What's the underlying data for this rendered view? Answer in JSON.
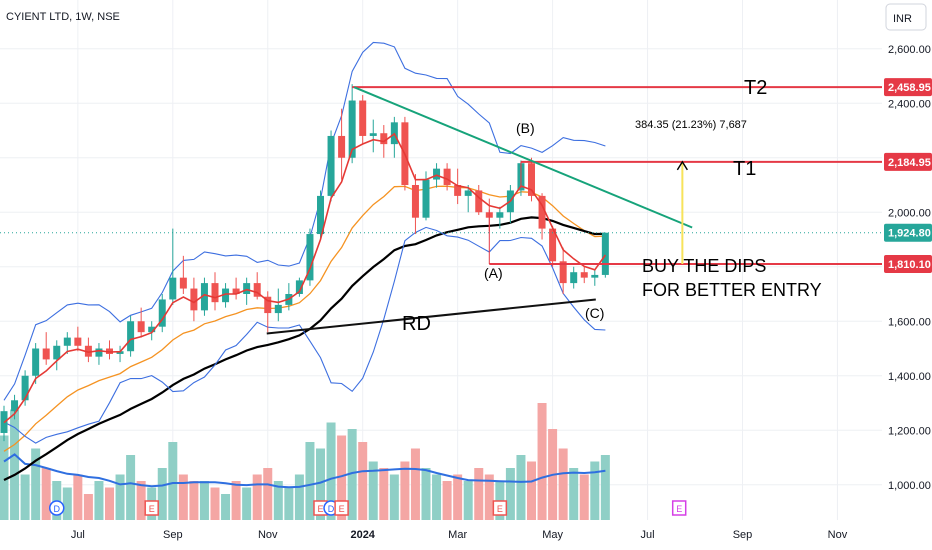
{
  "header": {
    "symbol": "CYIENT LTD, 1W, NSE",
    "currency": "INR"
  },
  "colors": {
    "up": "#26a69a",
    "down": "#ef5350",
    "upVol": "#8fcfc6",
    "downVol": "#f4a6a4",
    "ema_red": "#e53935",
    "ema_orange": "#f59322",
    "ma_black": "#000000",
    "bollinger": "#3d6fe0",
    "vol_ma": "#2f6fe0",
    "trend": "#16a37a",
    "level": "#e53946",
    "arrow": "#f7e35a",
    "grid": "#eef0f4",
    "earnings": "#ef5350",
    "dividend": "#2962ff",
    "future_event": "#d53ee6"
  },
  "chart_data": {
    "type": "candlestick",
    "interval": "1W",
    "ylim": [
      900,
      2680
    ],
    "y_ticks": [
      1000,
      1200,
      1400,
      1600,
      1800,
      2000,
      2200,
      2400,
      2600
    ],
    "y_tick_labels": [
      "1,000.00",
      "1,200.00",
      "1,400.00",
      "1,600.00",
      "",
      "2,000.00",
      "",
      "2,400.00",
      "2,600.00"
    ],
    "x_labels": [
      "Jul",
      "Sep",
      "Nov",
      "2024",
      "Mar",
      "May",
      "Jul",
      "Sep",
      "Nov"
    ],
    "x_label_weeks": [
      7,
      16,
      25,
      34,
      43,
      52,
      61,
      70,
      79
    ],
    "candles": [
      [
        1190,
        1290,
        1160,
        1270
      ],
      [
        1270,
        1330,
        1240,
        1310
      ],
      [
        1310,
        1420,
        1290,
        1400
      ],
      [
        1400,
        1520,
        1370,
        1500
      ],
      [
        1500,
        1560,
        1440,
        1460
      ],
      [
        1460,
        1530,
        1420,
        1510
      ],
      [
        1510,
        1560,
        1480,
        1540
      ],
      [
        1540,
        1580,
        1490,
        1510
      ],
      [
        1510,
        1540,
        1450,
        1470
      ],
      [
        1470,
        1520,
        1440,
        1500
      ],
      [
        1500,
        1530,
        1460,
        1480
      ],
      [
        1480,
        1510,
        1450,
        1490
      ],
      [
        1490,
        1620,
        1470,
        1600
      ],
      [
        1600,
        1650,
        1540,
        1560
      ],
      [
        1560,
        1600,
        1530,
        1580
      ],
      [
        1580,
        1700,
        1560,
        1680
      ],
      [
        1680,
        1940,
        1660,
        1760
      ],
      [
        1760,
        1840,
        1700,
        1720
      ],
      [
        1720,
        1760,
        1600,
        1640
      ],
      [
        1640,
        1760,
        1620,
        1740
      ],
      [
        1740,
        1780,
        1640,
        1670
      ],
      [
        1670,
        1740,
        1650,
        1720
      ],
      [
        1720,
        1760,
        1680,
        1700
      ],
      [
        1700,
        1760,
        1660,
        1740
      ],
      [
        1740,
        1780,
        1680,
        1690
      ],
      [
        1690,
        1710,
        1560,
        1630
      ],
      [
        1630,
        1720,
        1600,
        1660
      ],
      [
        1660,
        1740,
        1640,
        1700
      ],
      [
        1700,
        1760,
        1690,
        1750
      ],
      [
        1750,
        1940,
        1730,
        1920
      ],
      [
        1920,
        2080,
        1900,
        2060
      ],
      [
        2060,
        2300,
        2040,
        2280
      ],
      [
        2280,
        2380,
        2120,
        2200
      ],
      [
        2200,
        2470,
        2180,
        2410
      ],
      [
        2410,
        2430,
        2250,
        2280
      ],
      [
        2280,
        2340,
        2220,
        2290
      ],
      [
        2290,
        2320,
        2200,
        2250
      ],
      [
        2250,
        2350,
        2200,
        2330
      ],
      [
        2330,
        2350,
        2080,
        2100
      ],
      [
        2100,
        2140,
        1920,
        1980
      ],
      [
        1980,
        2150,
        1970,
        2120
      ],
      [
        2120,
        2180,
        2090,
        2160
      ],
      [
        2160,
        2180,
        2080,
        2100
      ],
      [
        2100,
        2160,
        2030,
        2060
      ],
      [
        2060,
        2100,
        2000,
        2080
      ],
      [
        2080,
        2100,
        1990,
        2000
      ],
      [
        2000,
        2050,
        1930,
        1980
      ],
      [
        1980,
        2020,
        1940,
        2000
      ],
      [
        2000,
        2100,
        1960,
        2080
      ],
      [
        2080,
        2190,
        2060,
        2180
      ],
      [
        2180,
        2200,
        2040,
        2060
      ],
      [
        2060,
        2070,
        1900,
        1940
      ],
      [
        1940,
        1950,
        1800,
        1820
      ],
      [
        1820,
        1870,
        1700,
        1740
      ],
      [
        1740,
        1800,
        1720,
        1780
      ],
      [
        1780,
        1800,
        1740,
        1760
      ],
      [
        1760,
        1790,
        1730,
        1770
      ],
      [
        1770,
        1925,
        1760,
        1924.8
      ]
    ],
    "volume": [
      0.65,
      0.85,
      0.35,
      0.55,
      0.4,
      0.3,
      0.25,
      0.35,
      0.2,
      0.3,
      0.25,
      0.35,
      0.5,
      0.3,
      0.25,
      0.4,
      0.6,
      0.35,
      0.3,
      0.3,
      0.25,
      0.2,
      0.3,
      0.25,
      0.35,
      0.4,
      0.3,
      0.25,
      0.35,
      0.6,
      0.55,
      0.75,
      0.65,
      0.7,
      0.6,
      0.45,
      0.4,
      0.35,
      0.45,
      0.55,
      0.4,
      0.35,
      0.3,
      0.35,
      0.3,
      0.4,
      0.35,
      0.3,
      0.4,
      0.5,
      0.45,
      0.9,
      0.7,
      0.55,
      0.4,
      0.35,
      0.45,
      0.5
    ],
    "last_price": 1924.8,
    "price_tags": [
      {
        "value": 2458.95,
        "label": "2,458.95"
      },
      {
        "value": 2184.95,
        "label": "2,184.95"
      },
      {
        "value": 1924.8,
        "label": "1,924.80"
      },
      {
        "value": 1810.1,
        "label": "1,810.10"
      }
    ],
    "annotations": {
      "t2": "T2",
      "t1": "T1",
      "b": "(B)",
      "a": "(A)",
      "c": "(C)",
      "rd": "RD",
      "buy1": "BUY THE DIPS",
      "buy2": "FOR BETTER ENTRY",
      "measure": "384.35 (21.23%) 7,687"
    },
    "events": [
      {
        "week": 5,
        "type": "D"
      },
      {
        "week": 14,
        "type": "E"
      },
      {
        "week": 30,
        "type": "E"
      },
      {
        "week": 31,
        "type": "D"
      },
      {
        "week": 32,
        "type": "E"
      },
      {
        "week": 47,
        "type": "E"
      },
      {
        "week": 64,
        "type": "E"
      }
    ]
  }
}
